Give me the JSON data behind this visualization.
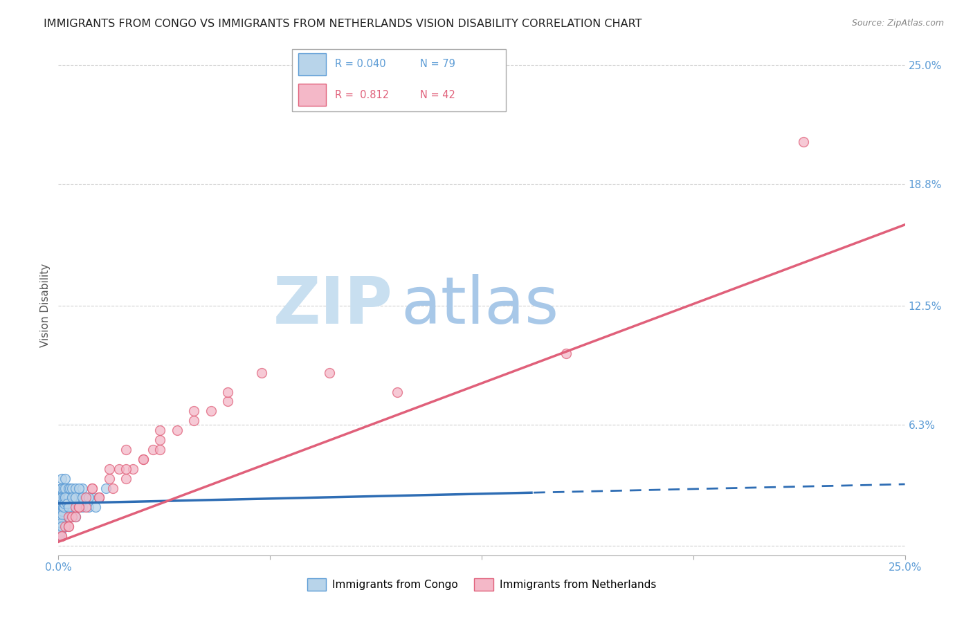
{
  "title": "IMMIGRANTS FROM CONGO VS IMMIGRANTS FROM NETHERLANDS VISION DISABILITY CORRELATION CHART",
  "source": "Source: ZipAtlas.com",
  "ylabel": "Vision Disability",
  "watermark_zip": "ZIP",
  "watermark_atlas": "atlas",
  "series": [
    {
      "label": "Immigrants from Congo",
      "color": "#b8d4ea",
      "edge_color": "#5b9bd5",
      "R": 0.04,
      "N": 79,
      "trend_color": "#2e6db4",
      "trend_solid_end": 0.14,
      "x_vals": [
        0.0005,
        0.0006,
        0.0007,
        0.0008,
        0.0009,
        0.001,
        0.001,
        0.001,
        0.001,
        0.001,
        0.001,
        0.001,
        0.001,
        0.001,
        0.001,
        0.0015,
        0.0015,
        0.0015,
        0.002,
        0.002,
        0.002,
        0.002,
        0.002,
        0.002,
        0.002,
        0.0025,
        0.0025,
        0.003,
        0.003,
        0.003,
        0.003,
        0.003,
        0.0035,
        0.0035,
        0.004,
        0.004,
        0.004,
        0.004,
        0.0045,
        0.005,
        0.005,
        0.005,
        0.005,
        0.006,
        0.006,
        0.007,
        0.007,
        0.008,
        0.009,
        0.01,
        0.0003,
        0.0004,
        0.0003,
        0.0005,
        0.0006,
        0.0004,
        0.0003,
        0.0007,
        0.0008,
        0.0005,
        0.001,
        0.0012,
        0.0013,
        0.0008,
        0.0009,
        0.0011,
        0.0015,
        0.0018,
        0.002,
        0.0025,
        0.003,
        0.004,
        0.005,
        0.006,
        0.007,
        0.009,
        0.011,
        0.012,
        0.014
      ],
      "y_vals": [
        0.02,
        0.025,
        0.015,
        0.03,
        0.02,
        0.025,
        0.015,
        0.035,
        0.02,
        0.01,
        0.03,
        0.02,
        0.025,
        0.015,
        0.01,
        0.025,
        0.02,
        0.03,
        0.02,
        0.03,
        0.025,
        0.015,
        0.02,
        0.035,
        0.01,
        0.025,
        0.02,
        0.025,
        0.02,
        0.03,
        0.015,
        0.025,
        0.02,
        0.03,
        0.025,
        0.02,
        0.03,
        0.015,
        0.025,
        0.02,
        0.025,
        0.03,
        0.015,
        0.025,
        0.02,
        0.03,
        0.02,
        0.025,
        0.02,
        0.025,
        0.005,
        0.005,
        0.008,
        0.01,
        0.007,
        0.006,
        0.009,
        0.012,
        0.008,
        0.007,
        0.015,
        0.018,
        0.02,
        0.012,
        0.01,
        0.016,
        0.02,
        0.022,
        0.025,
        0.022,
        0.02,
        0.025,
        0.025,
        0.03,
        0.025,
        0.025,
        0.02,
        0.025,
        0.03
      ]
    },
    {
      "label": "Immigrants from Netherlands",
      "color": "#f4b8c8",
      "edge_color": "#e0607a",
      "R": 0.812,
      "N": 42,
      "trend_color": "#e0607a",
      "x_vals": [
        0.001,
        0.002,
        0.003,
        0.004,
        0.005,
        0.006,
        0.008,
        0.01,
        0.012,
        0.015,
        0.018,
        0.02,
        0.022,
        0.025,
        0.028,
        0.03,
        0.035,
        0.04,
        0.045,
        0.05,
        0.001,
        0.003,
        0.005,
        0.008,
        0.012,
        0.016,
        0.02,
        0.025,
        0.03,
        0.003,
        0.006,
        0.01,
        0.015,
        0.02,
        0.03,
        0.04,
        0.05,
        0.06,
        0.08,
        0.1,
        0.15,
        0.22
      ],
      "y_vals": [
        0.005,
        0.01,
        0.015,
        0.015,
        0.02,
        0.02,
        0.025,
        0.03,
        0.025,
        0.035,
        0.04,
        0.035,
        0.04,
        0.045,
        0.05,
        0.055,
        0.06,
        0.065,
        0.07,
        0.075,
        0.005,
        0.01,
        0.015,
        0.02,
        0.025,
        0.03,
        0.04,
        0.045,
        0.05,
        0.01,
        0.02,
        0.03,
        0.04,
        0.05,
        0.06,
        0.07,
        0.08,
        0.09,
        0.09,
        0.08,
        0.1,
        0.21
      ]
    }
  ],
  "xlim": [
    0.0,
    0.25
  ],
  "ylim": [
    -0.005,
    0.255
  ],
  "yticks": [
    0.0,
    0.063,
    0.125,
    0.188,
    0.25
  ],
  "ytick_labels": [
    "",
    "6.3%",
    "12.5%",
    "18.8%",
    "25.0%"
  ],
  "xticks": [
    0.0,
    0.0625,
    0.125,
    0.1875,
    0.25
  ],
  "xtick_labels": [
    "0.0%",
    "",
    "",
    "",
    "25.0%"
  ],
  "grid_color": "#d0d0d0",
  "background_color": "#ffffff",
  "title_color": "#222222",
  "title_fontsize": 11.5,
  "axis_label_color": "#555555",
  "tick_label_color": "#5b9bd5",
  "watermark_color_zip": "#c8dff0",
  "watermark_color_atlas": "#a8c8e8",
  "marker_size": 100,
  "legend_R_N_color_blue": "#5b9bd5",
  "legend_R_N_color_pink": "#e0607a"
}
